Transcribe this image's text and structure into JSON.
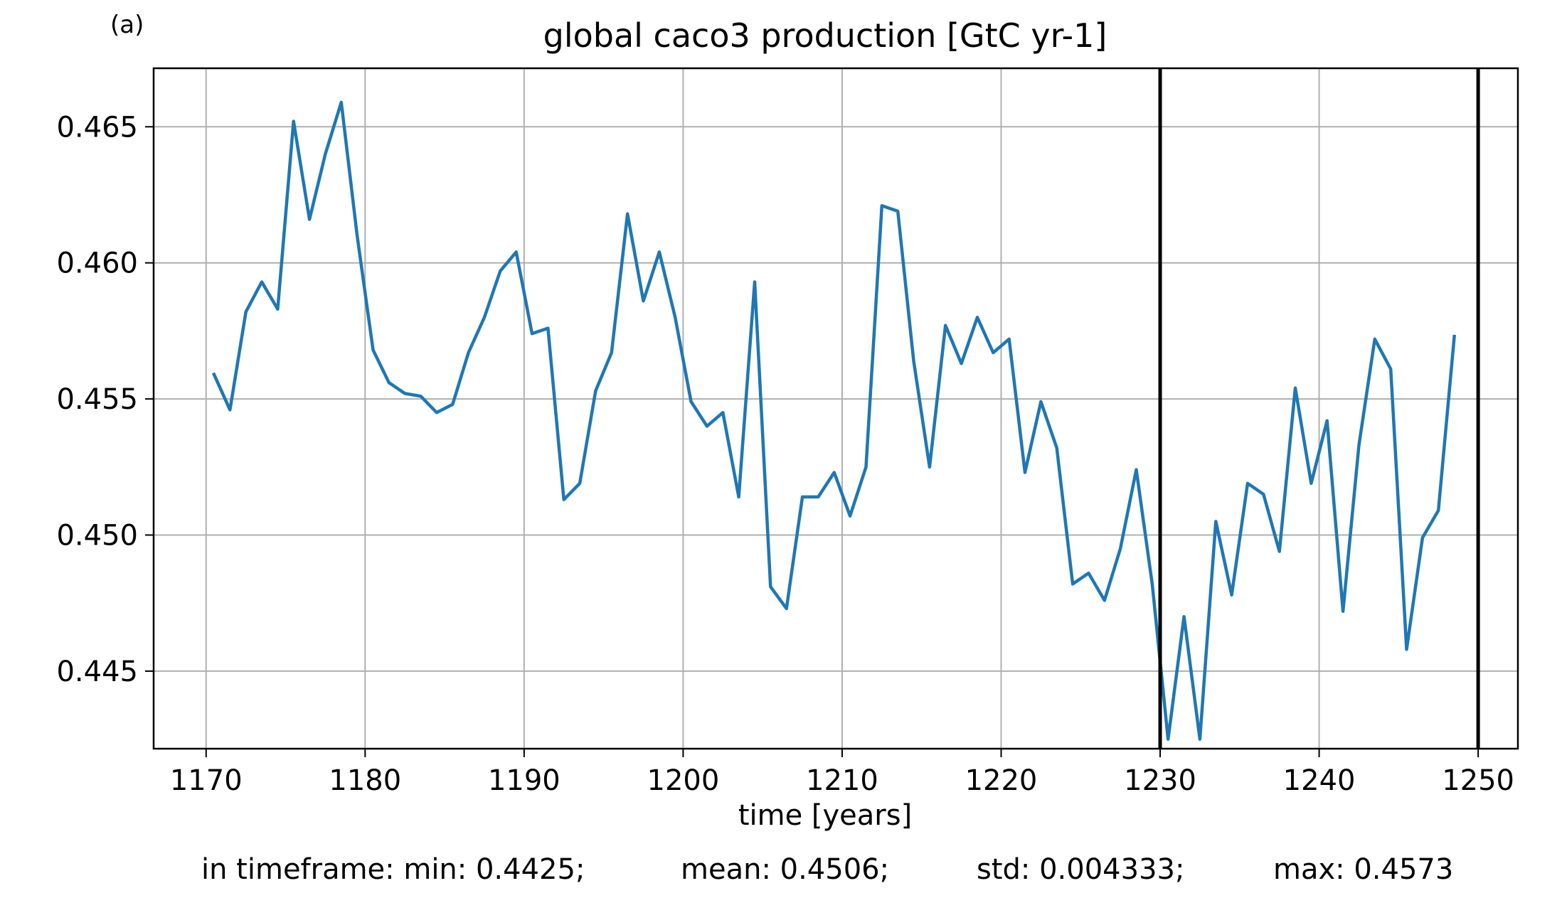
{
  "chart_data": {
    "type": "line",
    "panel_label": "(a)",
    "title": "global caco3 production [GtC yr-1]",
    "xlabel": "time [years]",
    "ylabel": "",
    "xlim": [
      1166.7,
      1252.5
    ],
    "ylim": [
      0.44215,
      0.46715
    ],
    "grid": true,
    "x_ticks": [
      1170,
      1180,
      1190,
      1200,
      1210,
      1220,
      1230,
      1240,
      1250
    ],
    "x_tick_labels": [
      "1170",
      "1180",
      "1190",
      "1200",
      "1210",
      "1220",
      "1230",
      "1240",
      "1250"
    ],
    "y_ticks": [
      0.445,
      0.45,
      0.455,
      0.46,
      0.465
    ],
    "y_tick_labels": [
      "0.445",
      "0.450",
      "0.455",
      "0.460",
      "0.465"
    ],
    "vlines": [
      1230,
      1250
    ],
    "line_color": "#1f77b4",
    "vline_color": "#000000",
    "series": [
      {
        "x": [
          1170.5,
          1171.5,
          1172.5,
          1173.5,
          1174.5,
          1175.5,
          1176.5,
          1177.5,
          1178.5,
          1179.5,
          1180.5,
          1181.5,
          1182.5,
          1183.5,
          1184.5,
          1185.5,
          1186.5,
          1187.5,
          1188.5,
          1189.5,
          1190.5,
          1191.5,
          1192.5,
          1193.5,
          1194.5,
          1195.5,
          1196.5,
          1197.5,
          1198.5,
          1199.5,
          1200.5,
          1201.5,
          1202.5,
          1203.5,
          1204.5,
          1205.5,
          1206.5,
          1207.5,
          1208.5,
          1209.5,
          1210.5,
          1211.5,
          1212.5,
          1213.5,
          1214.5,
          1215.5,
          1216.5,
          1217.5,
          1218.5,
          1219.5,
          1220.5,
          1221.5,
          1222.5,
          1223.5,
          1224.5,
          1225.5,
          1226.5,
          1227.5,
          1228.5,
          1229.5,
          1230.5,
          1231.5,
          1232.5,
          1233.5,
          1234.5,
          1235.5,
          1236.5,
          1237.5,
          1238.5,
          1239.5,
          1240.5,
          1241.5,
          1242.5,
          1243.5,
          1244.5,
          1245.5,
          1246.5,
          1247.5,
          1248.5
        ],
        "values": [
          0.4559,
          0.4546,
          0.4582,
          0.4593,
          0.4583,
          0.4652,
          0.4616,
          0.464,
          0.4659,
          0.461,
          0.4568,
          0.4556,
          0.4552,
          0.4551,
          0.4545,
          0.4548,
          0.4567,
          0.458,
          0.4597,
          0.4604,
          0.4574,
          0.4576,
          0.4513,
          0.4519,
          0.4553,
          0.4567,
          0.4618,
          0.4586,
          0.4604,
          0.458,
          0.4549,
          0.454,
          0.4545,
          0.4514,
          0.4593,
          0.4481,
          0.4473,
          0.4514,
          0.4514,
          0.4523,
          0.4507,
          0.4525,
          0.4621,
          0.4619,
          0.4564,
          0.4525,
          0.4577,
          0.4563,
          0.458,
          0.4567,
          0.4572,
          0.4523,
          0.4549,
          0.4532,
          0.4482,
          0.4486,
          0.4476,
          0.4495,
          0.4524,
          0.4482,
          0.4425,
          0.447,
          0.4425,
          0.4505,
          0.4478,
          0.4519,
          0.4515,
          0.4494,
          0.4554,
          0.4519,
          0.4542,
          0.4472,
          0.4533,
          0.4572,
          0.4561,
          0.4458,
          0.4499,
          0.4509,
          0.4573
        ]
      }
    ]
  },
  "stats": {
    "min": "in timeframe: min: 0.4425;",
    "mean": "mean: 0.4506;",
    "std": "std: 0.004333;",
    "max": "max: 0.4573"
  }
}
